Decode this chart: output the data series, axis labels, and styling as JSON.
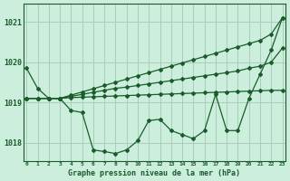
{
  "background_color": "#cceedd",
  "grid_color": "#aaccbb",
  "line_color": "#1a5c2a",
  "title": "Graphe pression niveau de la mer (hPa)",
  "ylabel_ticks": [
    1018,
    1019,
    1020,
    1021
  ],
  "xlim": [
    -0.3,
    23.3
  ],
  "ylim": [
    1017.55,
    1021.45
  ],
  "figsize": [
    3.2,
    2.0
  ],
  "dpi": 100,
  "series": [
    [
      1019.85,
      1019.35,
      1019.1,
      1019.1,
      1018.8,
      1018.75,
      1017.82,
      1017.78,
      1017.73,
      1017.82,
      1018.05,
      1018.55,
      1018.58,
      1018.3,
      1018.2,
      1018.1,
      1018.3,
      1019.2,
      1018.3,
      1018.3,
      1019.1,
      1019.7,
      1020.3,
      1021.1
    ],
    [
      1019.1,
      1019.1,
      1019.1,
      1019.1,
      1019.12,
      1019.13,
      1019.14,
      1019.15,
      1019.16,
      1019.17,
      1019.18,
      1019.19,
      1019.2,
      1019.21,
      1019.22,
      1019.23,
      1019.24,
      1019.25,
      1019.26,
      1019.27,
      1019.28,
      1019.29,
      1019.3,
      1019.3
    ],
    [
      1019.1,
      1019.1,
      1019.1,
      1019.1,
      1019.15,
      1019.2,
      1019.25,
      1019.3,
      1019.35,
      1019.38,
      1019.42,
      1019.46,
      1019.5,
      1019.54,
      1019.58,
      1019.62,
      1019.66,
      1019.7,
      1019.74,
      1019.78,
      1019.85,
      1019.9,
      1020.0,
      1020.35
    ],
    [
      1019.1,
      1019.1,
      1019.1,
      1019.1,
      1019.18,
      1019.26,
      1019.34,
      1019.42,
      1019.5,
      1019.58,
      1019.66,
      1019.74,
      1019.82,
      1019.9,
      1019.98,
      1020.06,
      1020.14,
      1020.22,
      1020.3,
      1020.38,
      1020.46,
      1020.54,
      1020.7,
      1021.1
    ]
  ]
}
